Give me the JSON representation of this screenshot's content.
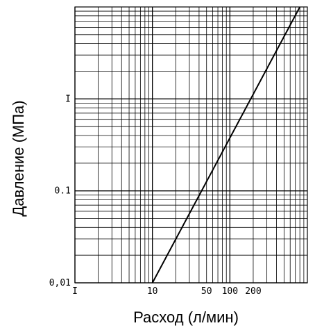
{
  "chart_data": {
    "type": "line",
    "xlabel": "Расход (л/мин)",
    "ylabel": "Давление (МПа)",
    "x_scale": "log",
    "y_scale": "log",
    "xlim": [
      1,
      1000
    ],
    "ylim": [
      0.01,
      10
    ],
    "grid": true,
    "y_ticks": [
      {
        "value": 0.01,
        "label": "0,01"
      },
      {
        "value": 0.1,
        "label": "0.1"
      },
      {
        "value": 1,
        "label": "I"
      }
    ],
    "x_ticks": [
      {
        "value": 1,
        "label": "I"
      },
      {
        "value": 10,
        "label": "10"
      },
      {
        "value": 50,
        "label": "50"
      },
      {
        "value": 100,
        "label": "100"
      },
      {
        "value": 200,
        "label": "200"
      }
    ],
    "series": [
      {
        "x": [
          10,
          800
        ],
        "y": [
          0.01,
          10
        ]
      }
    ],
    "colors": {
      "grid": "#000000",
      "line": "#000000"
    }
  }
}
